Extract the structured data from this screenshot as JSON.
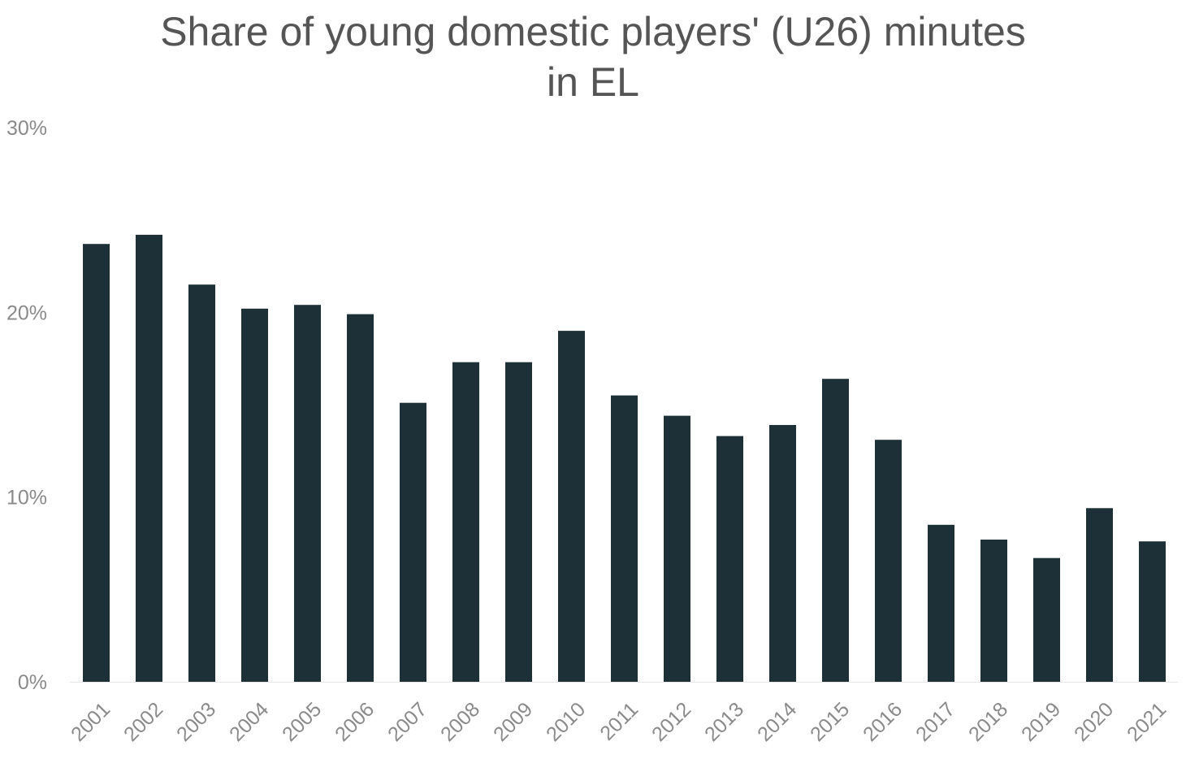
{
  "chart_data": {
    "type": "bar",
    "title_lines": [
      "Share of young domestic players' (U26) minutes",
      "in EL"
    ],
    "categories": [
      "2001",
      "2002",
      "2003",
      "2004",
      "2005",
      "2006",
      "2007",
      "2008",
      "2009",
      "2010",
      "2011",
      "2012",
      "2013",
      "2014",
      "2015",
      "2016",
      "2017",
      "2018",
      "2019",
      "2020",
      "2021"
    ],
    "values": [
      23.7,
      24.2,
      21.5,
      20.2,
      20.4,
      19.9,
      15.1,
      17.3,
      17.3,
      19.0,
      15.5,
      14.4,
      13.3,
      13.9,
      16.4,
      13.1,
      8.5,
      7.7,
      6.7,
      9.4,
      7.6
    ],
    "ylim": [
      0,
      30
    ],
    "yticks": [
      0,
      10,
      20,
      30
    ],
    "ytick_labels": [
      "0%",
      "10%",
      "20%",
      "30%"
    ],
    "xlabel": "",
    "ylabel": "",
    "grid": false,
    "colors": {
      "bar": "#1d3038",
      "text": "#555555",
      "axis": "#e6e6e6"
    }
  }
}
